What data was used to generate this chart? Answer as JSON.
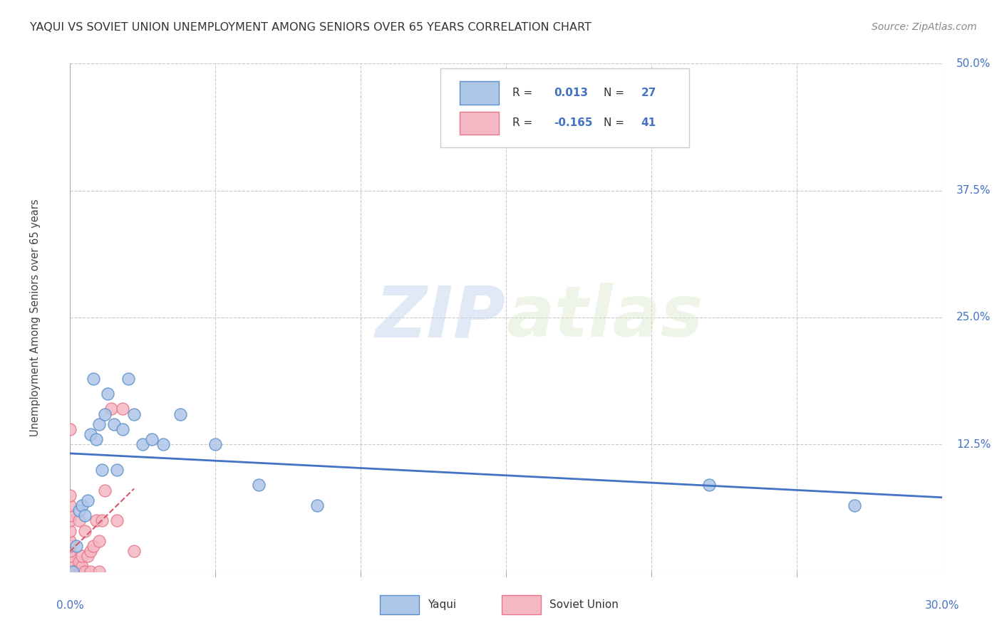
{
  "title": "YAQUI VS SOVIET UNION UNEMPLOYMENT AMONG SENIORS OVER 65 YEARS CORRELATION CHART",
  "source": "Source: ZipAtlas.com",
  "ylabel": "Unemployment Among Seniors over 65 years",
  "xlim": [
    0.0,
    0.3
  ],
  "ylim": [
    0.0,
    0.5
  ],
  "background_color": "#ffffff",
  "grid_color": "#c8c8c8",
  "yaqui_color": "#aec6e8",
  "soviet_color": "#f4b8c4",
  "yaqui_edge_color": "#5b8fc9",
  "soviet_edge_color": "#e8768a",
  "trend_yaqui_color": "#4472c4",
  "trend_soviet_color": "#d9556a",
  "R_yaqui": "0.013",
  "N_yaqui": "27",
  "R_soviet": "-0.165",
  "N_soviet": "41",
  "watermark_zip": "ZIP",
  "watermark_atlas": "atlas",
  "yaqui_x": [
    0.001,
    0.002,
    0.003,
    0.004,
    0.005,
    0.006,
    0.007,
    0.008,
    0.009,
    0.01,
    0.011,
    0.012,
    0.013,
    0.015,
    0.016,
    0.018,
    0.02,
    0.022,
    0.025,
    0.028,
    0.032,
    0.038,
    0.05,
    0.065,
    0.085,
    0.22,
    0.27
  ],
  "yaqui_y": [
    0.0,
    0.025,
    0.06,
    0.065,
    0.055,
    0.07,
    0.135,
    0.19,
    0.13,
    0.145,
    0.1,
    0.155,
    0.175,
    0.145,
    0.1,
    0.14,
    0.19,
    0.155,
    0.125,
    0.13,
    0.125,
    0.155,
    0.125,
    0.085,
    0.065,
    0.085,
    0.065
  ],
  "soviet_x": [
    0.0,
    0.0,
    0.0,
    0.0,
    0.0,
    0.0,
    0.0,
    0.0,
    0.0,
    0.0,
    0.0,
    0.0,
    0.0,
    0.0,
    0.0,
    0.0,
    0.0,
    0.0,
    0.0,
    0.0,
    0.003,
    0.003,
    0.003,
    0.003,
    0.004,
    0.004,
    0.005,
    0.005,
    0.006,
    0.007,
    0.007,
    0.008,
    0.009,
    0.01,
    0.01,
    0.011,
    0.012,
    0.014,
    0.016,
    0.018,
    0.022
  ],
  "soviet_y": [
    0.0,
    0.0,
    0.0,
    0.0,
    0.0,
    0.0,
    0.0,
    0.0,
    0.01,
    0.01,
    0.015,
    0.02,
    0.025,
    0.03,
    0.04,
    0.05,
    0.055,
    0.065,
    0.075,
    0.14,
    0.0,
    0.005,
    0.01,
    0.05,
    0.005,
    0.015,
    0.0,
    0.04,
    0.015,
    0.0,
    0.02,
    0.025,
    0.05,
    0.0,
    0.03,
    0.05,
    0.08,
    0.16,
    0.05,
    0.16,
    0.02
  ]
}
